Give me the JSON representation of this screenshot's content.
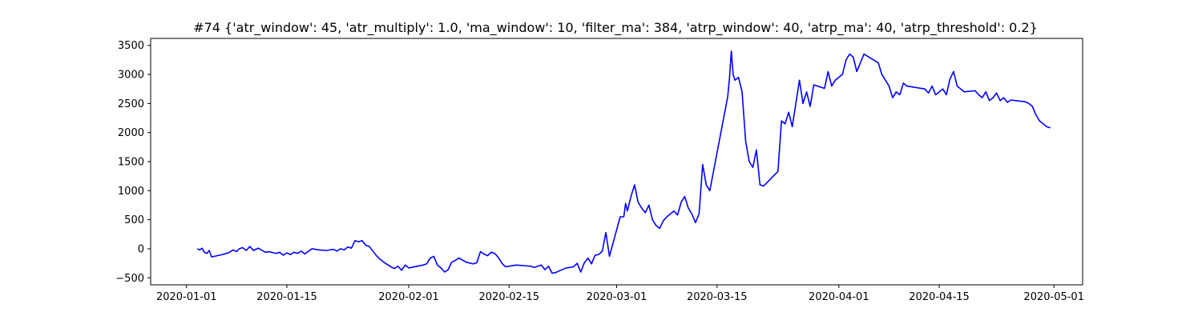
{
  "chart_data": {
    "type": "line",
    "title": "#74 {'atr_window': 45, 'atr_multiply': 1.0, 'ma_window': 10, 'filter_ma': 384, 'atrp_window': 40, 'atrp_ma': 40, 'atrp_threshold': 0.2}",
    "xlabel": "",
    "ylabel": "",
    "xlim": [
      "2019-12-27",
      "2020-05-05"
    ],
    "ylim": [
      -620,
      3620
    ],
    "x_ticks": [
      "2020-01-01",
      "2020-01-15",
      "2020-02-01",
      "2020-02-15",
      "2020-03-01",
      "2020-03-15",
      "2020-04-01",
      "2020-04-15",
      "2020-05-01"
    ],
    "y_ticks": [
      -500,
      0,
      500,
      1000,
      1500,
      2000,
      2500,
      3000,
      3500
    ],
    "grid": false,
    "line_color": "#0000ff",
    "series": [
      {
        "x": [
          "2020-01-02 12:00",
          "2020-01-02 20:00",
          "2020-01-03 04:00",
          "2020-01-03 12:00",
          "2020-01-03 20:00",
          "2020-01-04 04:00",
          "2020-01-04 12:00",
          "2020-01-06 00:00",
          "2020-01-06 20:00",
          "2020-01-07 12:00",
          "2020-01-08 00:00",
          "2020-01-08 08:00",
          "2020-01-08 20:00",
          "2020-01-09 08:00",
          "2020-01-09 20:00",
          "2020-01-10 08:00",
          "2020-01-11 00:00",
          "2020-01-12 00:00",
          "2020-01-12 12:00",
          "2020-01-13 12:00",
          "2020-01-14 00:00",
          "2020-01-14 12:00",
          "2020-01-15 00:00",
          "2020-01-15 12:00",
          "2020-01-16 00:00",
          "2020-01-16 12:00",
          "2020-01-17 00:00",
          "2020-01-17 12:00",
          "2020-01-18 12:00",
          "2020-01-19 12:00",
          "2020-01-20 12:00",
          "2020-01-21 12:00",
          "2020-01-22 00:00",
          "2020-01-22 12:00",
          "2020-01-23 00:00",
          "2020-01-23 12:00",
          "2020-01-24 00:00",
          "2020-01-24 12:00",
          "2020-01-25 00:00",
          "2020-01-25 12:00",
          "2020-01-26 00:00",
          "2020-01-26 12:00",
          "2020-01-27 12:00",
          "2020-01-28 00:00",
          "2020-01-28 12:00",
          "2020-01-29 00:00",
          "2020-01-29 12:00",
          "2020-01-30 00:00",
          "2020-01-30 12:00",
          "2020-01-31 00:00",
          "2020-01-31 12:00",
          "2020-02-01 00:00",
          "2020-02-03 00:00",
          "2020-02-03 12:00",
          "2020-02-04 00:00",
          "2020-02-04 12:00",
          "2020-02-05 00:00",
          "2020-02-05 12:00",
          "2020-02-06 00:00",
          "2020-02-06 12:00",
          "2020-02-07 00:00",
          "2020-02-07 12:00",
          "2020-02-08 00:00",
          "2020-02-09 00:00",
          "2020-02-10 00:00",
          "2020-02-10 12:00",
          "2020-02-11 00:00",
          "2020-02-11 12:00",
          "2020-02-12 00:00",
          "2020-02-12 12:00",
          "2020-02-13 00:00",
          "2020-02-13 12:00",
          "2020-02-14 00:00",
          "2020-02-14 12:00",
          "2020-02-16 00:00",
          "2020-02-18 00:00",
          "2020-02-18 12:00",
          "2020-02-19 12:00",
          "2020-02-20 00:00",
          "2020-02-20 12:00",
          "2020-02-21 00:00",
          "2020-02-21 12:00",
          "2020-02-22 00:00",
          "2020-02-23 00:00",
          "2020-02-24 00:00",
          "2020-02-24 12:00",
          "2020-02-25 00:00",
          "2020-02-25 12:00",
          "2020-02-26 00:00",
          "2020-02-26 12:00",
          "2020-02-27 00:00",
          "2020-02-27 12:00",
          "2020-02-28 00:00",
          "2020-02-28 12:00",
          "2020-02-29 00:00",
          "2020-03-01 12:00",
          "2020-03-02 00:00",
          "2020-03-02 06:00",
          "2020-03-02 12:00",
          "2020-03-03 00:00",
          "2020-03-03 12:00",
          "2020-03-04 00:00",
          "2020-03-04 12:00",
          "2020-03-05 00:00",
          "2020-03-05 12:00",
          "2020-03-06 00:00",
          "2020-03-06 12:00",
          "2020-03-07 00:00",
          "2020-03-07 12:00",
          "2020-03-08 00:00",
          "2020-03-09 00:00",
          "2020-03-09 12:00",
          "2020-03-10 00:00",
          "2020-03-10 12:00",
          "2020-03-11 00:00",
          "2020-03-11 12:00",
          "2020-03-12 00:00",
          "2020-03-12 12:00",
          "2020-03-13 00:00",
          "2020-03-13 12:00",
          "2020-03-14 00:00",
          "2020-03-16 12:00",
          "2020-03-16 18:00",
          "2020-03-17 00:00",
          "2020-03-17 06:00",
          "2020-03-17 12:00",
          "2020-03-18 00:00",
          "2020-03-18 12:00",
          "2020-03-19 00:00",
          "2020-03-19 12:00",
          "2020-03-20 00:00",
          "2020-03-20 12:00",
          "2020-03-21 00:00",
          "2020-03-21 12:00",
          "2020-03-23 12:00",
          "2020-03-24 00:00",
          "2020-03-24 12:00",
          "2020-03-25 00:00",
          "2020-03-25 12:00",
          "2020-03-26 00:00",
          "2020-03-26 12:00",
          "2020-03-27 00:00",
          "2020-03-27 12:00",
          "2020-03-28 00:00",
          "2020-03-28 12:00",
          "2020-03-30 00:00",
          "2020-03-30 12:00",
          "2020-03-31 00:00",
          "2020-03-31 12:00",
          "2020-04-01 00:00",
          "2020-04-01 12:00",
          "2020-04-02 00:00",
          "2020-04-02 12:00",
          "2020-04-03 00:00",
          "2020-04-03 12:00",
          "2020-04-04 00:00",
          "2020-04-04 12:00",
          "2020-04-06 12:00",
          "2020-04-07 00:00",
          "2020-04-07 12:00",
          "2020-04-08 00:00",
          "2020-04-08 12:00",
          "2020-04-09 00:00",
          "2020-04-09 12:00",
          "2020-04-10 00:00",
          "2020-04-10 12:00",
          "2020-04-13 00:00",
          "2020-04-13 12:00",
          "2020-04-14 00:00",
          "2020-04-14 12:00",
          "2020-04-15 00:00",
          "2020-04-15 12:00",
          "2020-04-16 00:00",
          "2020-04-16 12:00",
          "2020-04-17 00:00",
          "2020-04-17 12:00",
          "2020-04-18 00:00",
          "2020-04-18 12:00",
          "2020-04-20 00:00",
          "2020-04-20 12:00",
          "2020-04-21 00:00",
          "2020-04-21 12:00",
          "2020-04-22 00:00",
          "2020-04-22 12:00",
          "2020-04-23 00:00",
          "2020-04-23 12:00",
          "2020-04-24 00:00",
          "2020-04-24 12:00",
          "2020-04-25 00:00",
          "2020-04-27 00:00",
          "2020-04-27 12:00",
          "2020-04-28 00:00",
          "2020-04-28 12:00",
          "2020-04-29 00:00",
          "2020-04-29 12:00",
          "2020-04-30 00:00",
          "2020-04-30 12:00"
        ],
        "y": [
          0,
          -20,
          10,
          -60,
          -80,
          -30,
          -140,
          -100,
          -70,
          -20,
          -50,
          0,
          20,
          -30,
          40,
          -30,
          10,
          -60,
          -50,
          -80,
          -60,
          -110,
          -70,
          -100,
          -60,
          -80,
          -40,
          -90,
          0,
          -20,
          -30,
          -10,
          -40,
          0,
          -20,
          30,
          10,
          140,
          120,
          140,
          60,
          40,
          -120,
          -180,
          -230,
          -270,
          -310,
          -340,
          -300,
          -370,
          -280,
          -330,
          -280,
          -260,
          -160,
          -130,
          -280,
          -330,
          -400,
          -360,
          -230,
          -200,
          -160,
          -230,
          -260,
          -240,
          -50,
          -90,
          -120,
          -60,
          -80,
          -150,
          -250,
          -310,
          -280,
          -300,
          -320,
          -280,
          -360,
          -300,
          -420,
          -410,
          -380,
          -330,
          -310,
          -250,
          -400,
          -240,
          -160,
          -260,
          -110,
          -100,
          -40,
          280,
          -130,
          550,
          550,
          780,
          650,
          900,
          1100,
          800,
          700,
          620,
          750,
          500,
          400,
          350,
          480,
          550,
          650,
          580,
          800,
          900,
          700,
          600,
          450,
          600,
          1450,
          1100,
          1000,
          2620,
          2950,
          3400,
          3000,
          2900,
          2950,
          2700,
          1850,
          1500,
          1400,
          1700,
          1100,
          1080,
          1330,
          2200,
          2150,
          2350,
          2100,
          2500,
          2900,
          2500,
          2700,
          2450,
          2820,
          2760,
          3050,
          2800,
          2900,
          2950,
          3000,
          3250,
          3350,
          3300,
          3050,
          3200,
          3350,
          3200,
          3000,
          2900,
          2800,
          2600,
          2700,
          2650,
          2850,
          2800,
          2750,
          2680,
          2800,
          2650,
          2700,
          2750,
          2650,
          2920,
          3050,
          2800,
          2750,
          2700,
          2720,
          2650,
          2600,
          2700,
          2550,
          2600,
          2680,
          2550,
          2600,
          2520,
          2560,
          2530,
          2500,
          2450,
          2300,
          2200,
          2150,
          2100,
          2080
        ]
      }
    ]
  }
}
